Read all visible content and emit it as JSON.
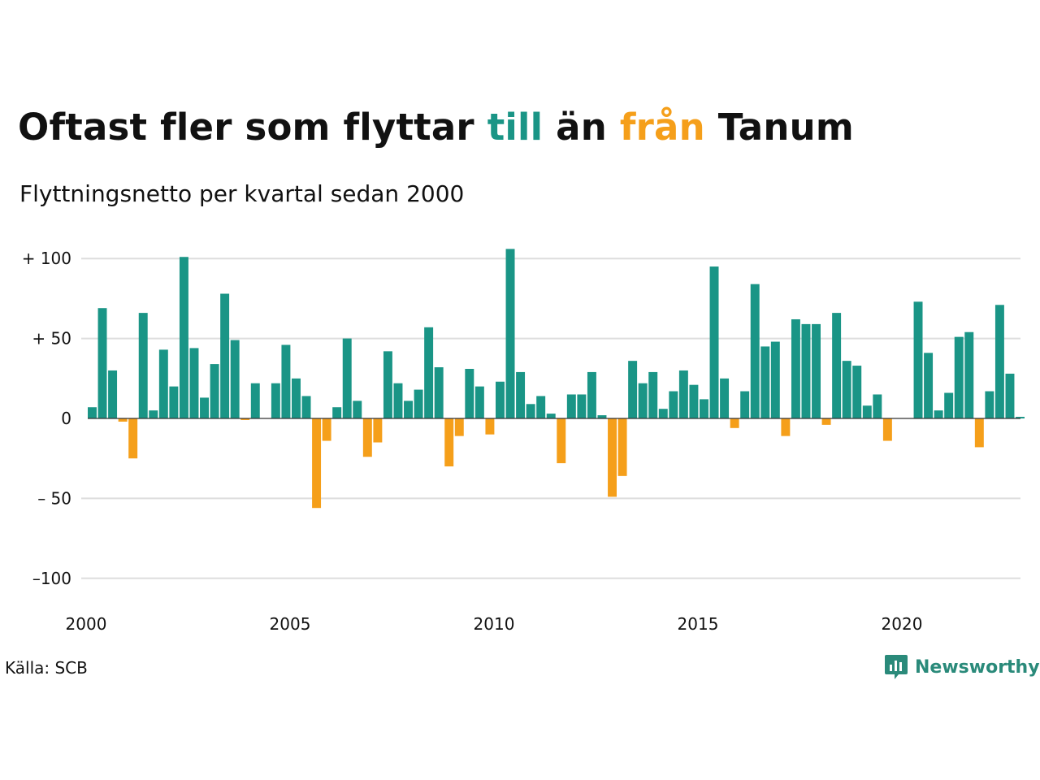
{
  "title": {
    "part1": "Oftast fler som flyttar ",
    "till": "till",
    "part2": " än ",
    "fran": "från",
    "part3": " Tanum"
  },
  "subtitle": "Flyttningsnetto per kvartal sedan 2000",
  "source": "Källa: SCB",
  "brand": "Newsworthy",
  "colors": {
    "positive": "#1a9586",
    "negative": "#f59f1a",
    "grid": "#dddddd",
    "baseline": "#333333",
    "brand": "#2a8a7a"
  },
  "chart_data": {
    "type": "bar",
    "x_unit": "kvartal",
    "x_start": "2000K1",
    "values": [
      7,
      69,
      30,
      -2,
      -25,
      66,
      5,
      43,
      20,
      101,
      44,
      13,
      34,
      78,
      49,
      -1,
      22,
      0,
      22,
      46,
      25,
      14,
      -56,
      -14,
      7,
      50,
      11,
      -24,
      -15,
      42,
      22,
      11,
      18,
      57,
      32,
      -30,
      -11,
      31,
      20,
      -10,
      23,
      106,
      29,
      9,
      14,
      3,
      -28,
      15,
      15,
      29,
      2,
      -49,
      -36,
      36,
      22,
      29,
      6,
      17,
      30,
      21,
      12,
      95,
      25,
      -6,
      17,
      84,
      45,
      48,
      -11,
      62,
      59,
      59,
      -4,
      66,
      36,
      33,
      8,
      15,
      -14,
      0,
      0,
      73,
      41,
      5,
      16,
      51,
      54,
      -18,
      17,
      71,
      28,
      1
    ],
    "ylim": [
      -110,
      110
    ],
    "y_ticks": [
      100,
      50,
      0,
      -50,
      -100
    ],
    "y_tick_labels": [
      "+ 100",
      "+  50",
      "0",
      "– 50",
      "–100"
    ],
    "x_ticks": [
      "2000",
      "2005",
      "2010",
      "2015",
      "2020"
    ],
    "xlabel": "",
    "ylabel": "",
    "grid": true
  }
}
